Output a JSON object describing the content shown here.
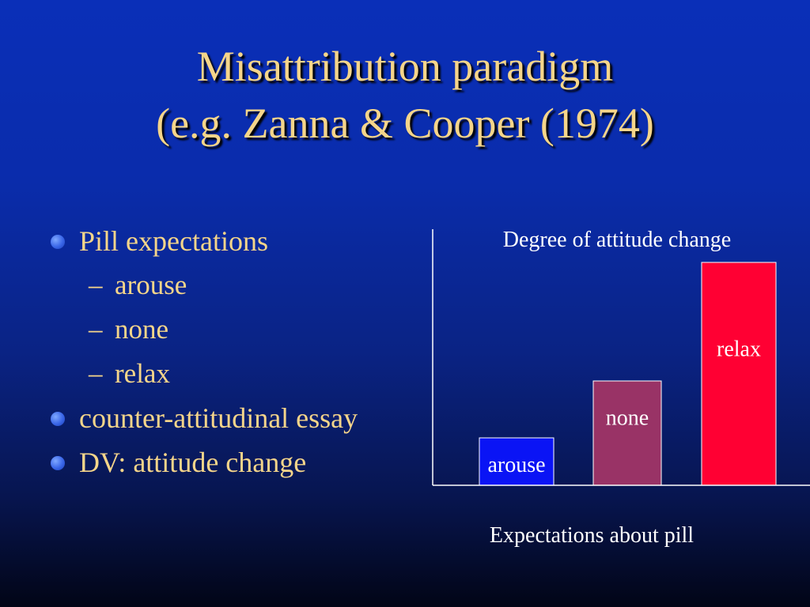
{
  "slide": {
    "title_line1": "Misattribution paradigm",
    "title_line2": "(e.g. Zanna & Cooper (1974)",
    "bullets": [
      {
        "text": "Pill expectations",
        "level": 1
      },
      {
        "text": "arouse",
        "level": 2
      },
      {
        "text": "none",
        "level": 2
      },
      {
        "text": "relax",
        "level": 2
      },
      {
        "text": "counter-attitudinal essay",
        "level": 1
      },
      {
        "text": "DV: attitude change",
        "level": 1
      }
    ],
    "dash_glyph": "–"
  },
  "colors": {
    "title": "#f5d58a",
    "text": "#f5d58a",
    "bullet_dot": "#3a66e8",
    "axis": "#ffffff"
  },
  "chart_data": {
    "type": "bar",
    "ylabel": "Degree of attitude change",
    "xlabel": "Expectations about pill",
    "categories": [
      "arouse",
      "none",
      "relax"
    ],
    "values": [
      1,
      2.2,
      4.7
    ],
    "bar_colors": [
      "#0a14f5",
      "#993366",
      "#ff0033"
    ],
    "bar_labels": [
      "arouse",
      "none",
      "relax"
    ],
    "ylim": [
      0,
      5
    ],
    "grid": false,
    "tick_labels_shown": false
  }
}
